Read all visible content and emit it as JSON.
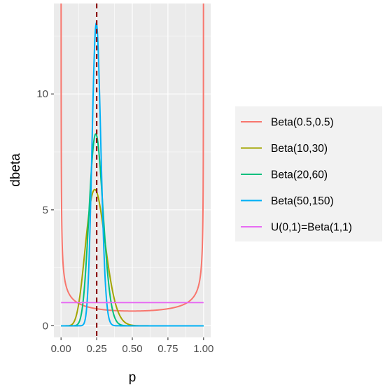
{
  "chart_data": {
    "type": "line",
    "xlabel": "p",
    "ylabel": "dbeta",
    "xlim": [
      -0.05,
      1.05
    ],
    "ylim": [
      -0.5,
      13.9
    ],
    "x_ticks": [
      0,
      0.25,
      0.5,
      0.75,
      1
    ],
    "x_tick_labels": [
      "0.00",
      "0.25",
      "0.50",
      "0.75",
      "1.00"
    ],
    "y_ticks": [
      0,
      5,
      10
    ],
    "y_tick_labels": [
      "0",
      "5",
      "10"
    ],
    "grid": true,
    "legend_position": "right",
    "reference_line": {
      "x": 0.25,
      "style": "dashed",
      "color": "#8B0000"
    },
    "series": [
      {
        "name": "Beta(0.5,0.5)",
        "dist": "beta",
        "a": 0.5,
        "b": 0.5,
        "color": "#F8766D"
      },
      {
        "name": "Beta(10,30)",
        "dist": "beta",
        "a": 10,
        "b": 30,
        "color": "#A3A500"
      },
      {
        "name": "Beta(20,60)",
        "dist": "beta",
        "a": 20,
        "b": 60,
        "color": "#00BF7D"
      },
      {
        "name": "Beta(50,150)",
        "dist": "beta",
        "a": 50,
        "b": 150,
        "color": "#00B0F6"
      },
      {
        "name": "U(0,1)=Beta(1,1)",
        "dist": "beta",
        "a": 1,
        "b": 1,
        "color": "#E76BF3"
      }
    ]
  }
}
